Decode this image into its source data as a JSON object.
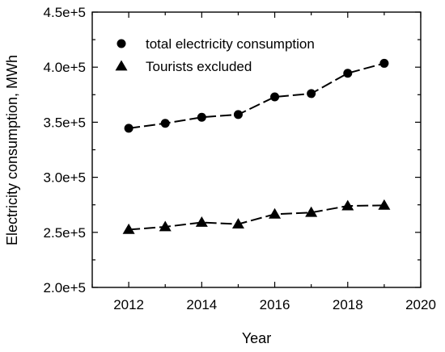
{
  "chart_data": {
    "type": "line",
    "title": "",
    "xlabel": "Year",
    "ylabel": "Electricity consumption, MWh",
    "xlim": [
      2011,
      2020
    ],
    "ylim": [
      200000,
      450000
    ],
    "x_ticks": [
      2012,
      2014,
      2016,
      2018,
      2020
    ],
    "x_tick_labels": [
      "2012",
      "2014",
      "2016",
      "2018",
      "2020"
    ],
    "y_ticks": [
      200000,
      250000,
      300000,
      350000,
      400000,
      450000
    ],
    "y_tick_labels": [
      "2.0e+5",
      "2.5e+5",
      "3.0e+5",
      "3.5e+5",
      "4.0e+5",
      "4.5e+5"
    ],
    "grid": false,
    "legend_position": "top-left",
    "line_style": "dashed",
    "series": [
      {
        "name": "total electricity consumption",
        "marker": "circle",
        "color": "#000000",
        "x": [
          2012,
          2013,
          2014,
          2015,
          2016,
          2017,
          2018,
          2019
        ],
        "y": [
          344500,
          349000,
          354500,
          357000,
          373000,
          376000,
          394500,
          403500
        ]
      },
      {
        "name": "Tourists excluded",
        "marker": "triangle",
        "color": "#000000",
        "x": [
          2012,
          2013,
          2014,
          2015,
          2016,
          2017,
          2018,
          2019
        ],
        "y": [
          252500,
          255000,
          259000,
          257500,
          266500,
          268000,
          274000,
          274500
        ]
      }
    ]
  }
}
